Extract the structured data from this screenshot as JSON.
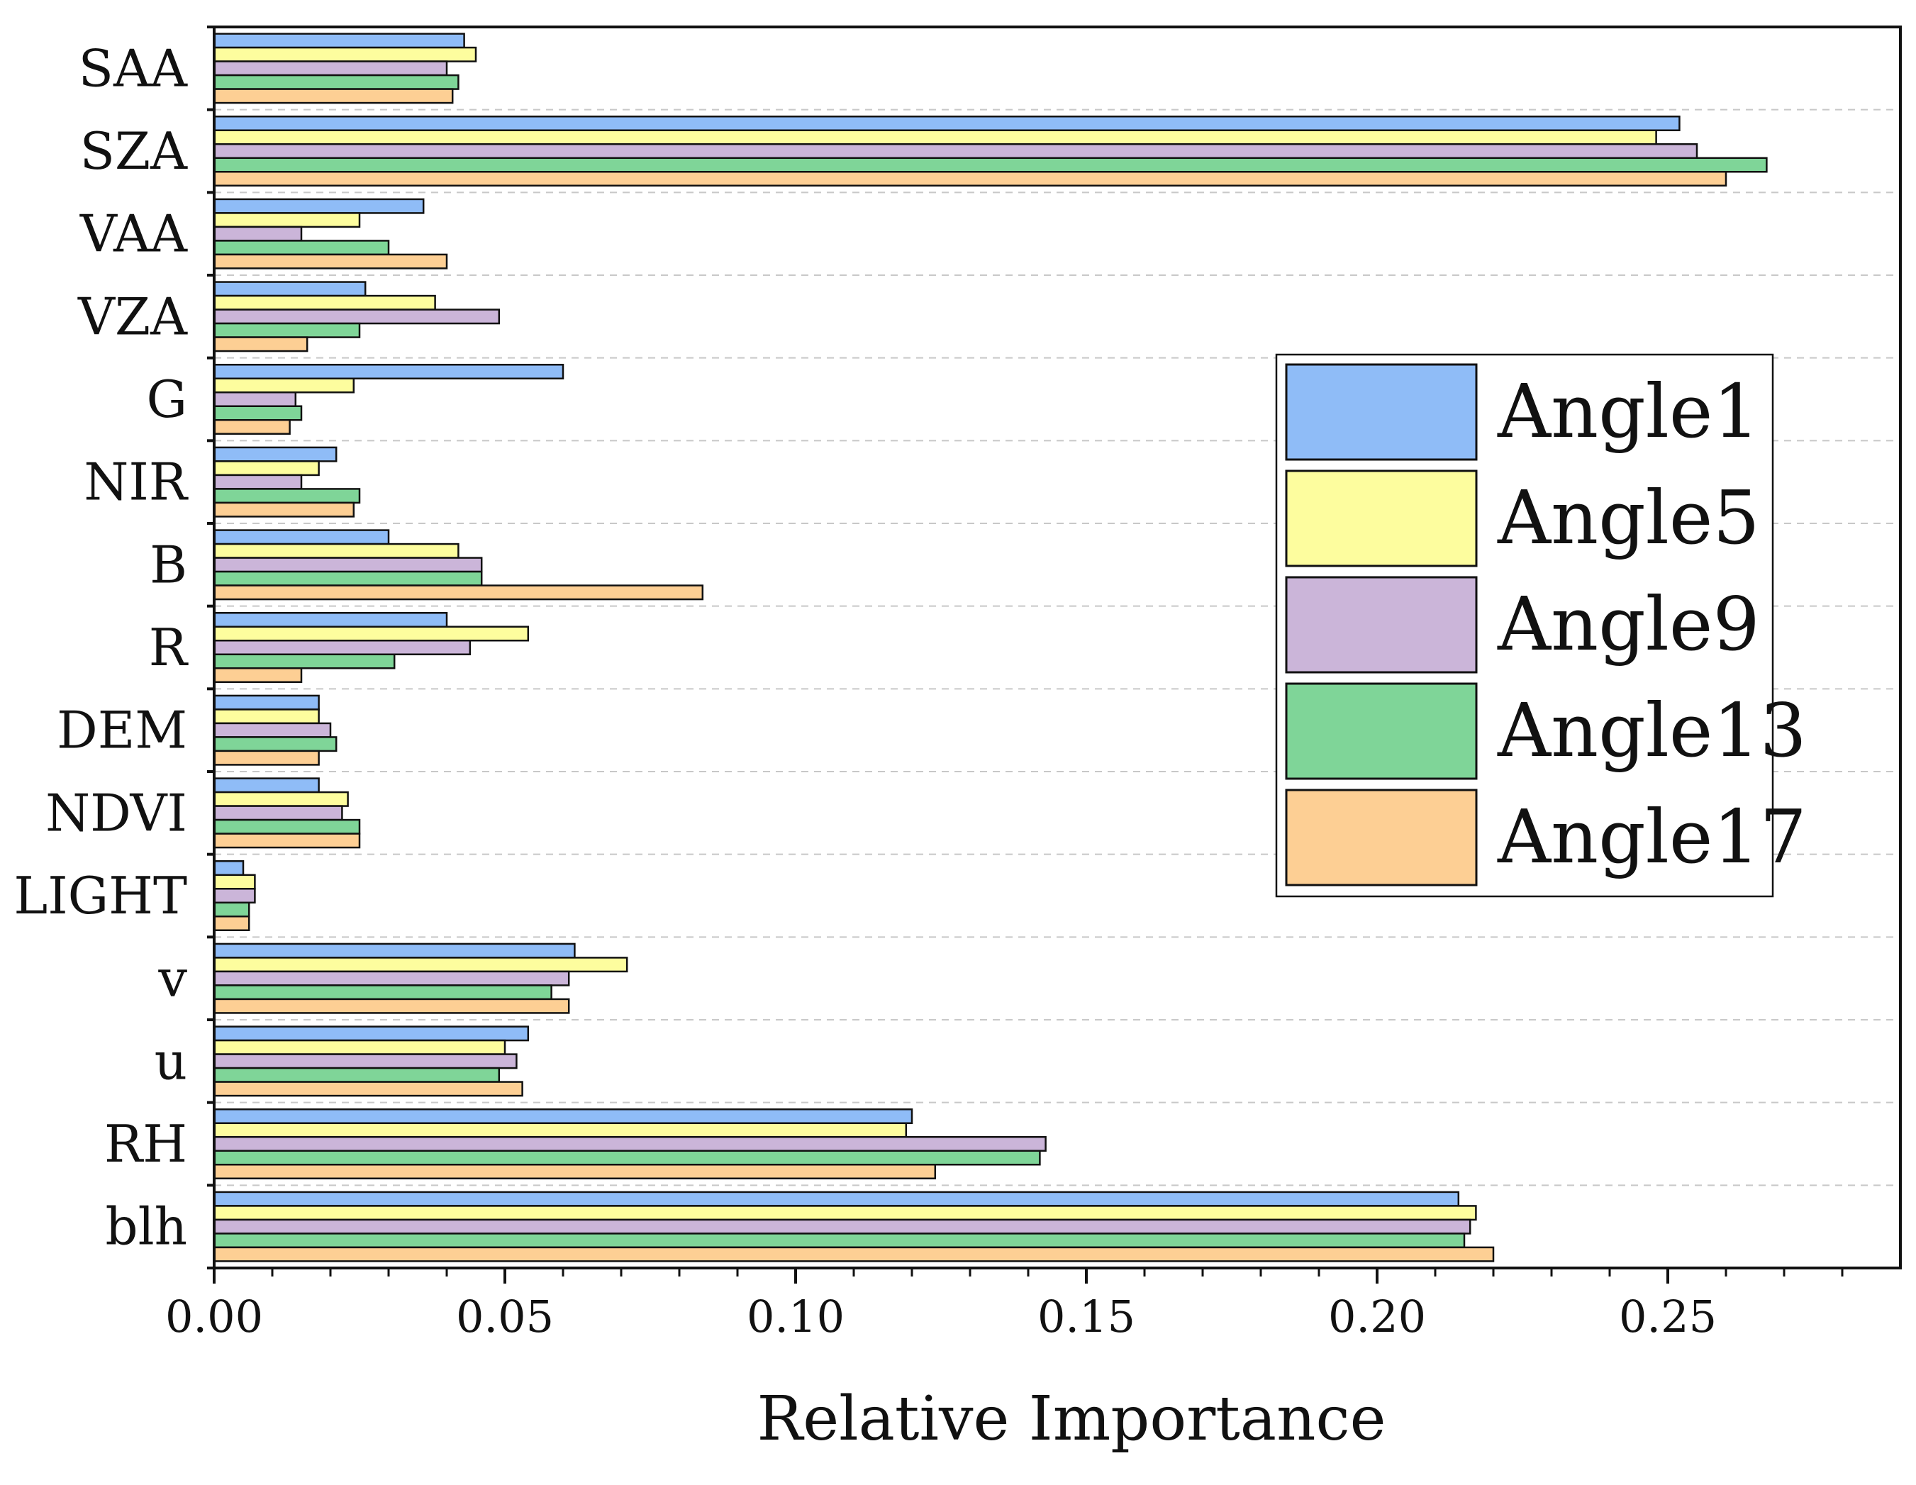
{
  "chart_data": {
    "type": "bar",
    "orientation": "horizontal",
    "title": "",
    "xlabel": "Relative Importance",
    "ylabel": "",
    "xlim": [
      0,
      0.29
    ],
    "xticks": [
      "0.00",
      "0.05",
      "0.10",
      "0.15",
      "0.20",
      "0.25"
    ],
    "xtick_values": [
      0,
      0.05,
      0.1,
      0.15,
      0.2,
      0.25
    ],
    "grid": true,
    "legend_position": "right",
    "categories": [
      "SAA",
      "SZA",
      "VAA",
      "VZA",
      "G",
      "NIR",
      "B",
      "R",
      "DEM",
      "NDVI",
      "LIGHT",
      "v",
      "u",
      "RH",
      "blh"
    ],
    "series": [
      {
        "name": "Angle1",
        "color": "#8fbcf7",
        "values": [
          0.043,
          0.252,
          0.036,
          0.026,
          0.06,
          0.021,
          0.03,
          0.04,
          0.018,
          0.018,
          0.005,
          0.062,
          0.054,
          0.12,
          0.214
        ]
      },
      {
        "name": "Angle5",
        "color": "#fdfd9e",
        "values": [
          0.045,
          0.248,
          0.025,
          0.038,
          0.024,
          0.018,
          0.042,
          0.054,
          0.018,
          0.023,
          0.007,
          0.071,
          0.05,
          0.119,
          0.217
        ]
      },
      {
        "name": "Angle9",
        "color": "#cbb5d9",
        "values": [
          0.04,
          0.255,
          0.015,
          0.049,
          0.014,
          0.015,
          0.046,
          0.044,
          0.02,
          0.022,
          0.007,
          0.061,
          0.052,
          0.143,
          0.216
        ]
      },
      {
        "name": "Angle13",
        "color": "#7fd598",
        "values": [
          0.042,
          0.267,
          0.03,
          0.025,
          0.015,
          0.025,
          0.046,
          0.031,
          0.021,
          0.025,
          0.006,
          0.058,
          0.049,
          0.142,
          0.215
        ]
      },
      {
        "name": "Angle17",
        "color": "#fdcf94",
        "values": [
          0.041,
          0.26,
          0.04,
          0.016,
          0.013,
          0.024,
          0.084,
          0.015,
          0.018,
          0.025,
          0.006,
          0.061,
          0.053,
          0.124,
          0.22
        ]
      }
    ]
  }
}
